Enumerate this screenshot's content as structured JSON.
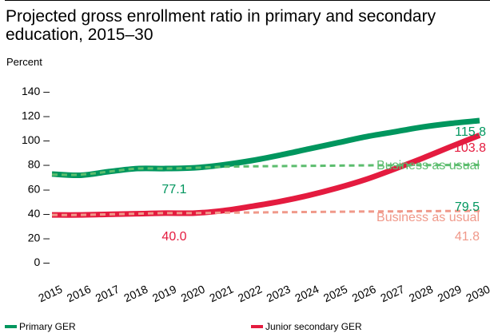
{
  "chart_data": {
    "type": "line",
    "title": "Projected gross enrollment ratio in primary and secondary education, 2015–30",
    "ylabel": "Percent",
    "xlabel": "",
    "x": [
      "2015",
      "2016",
      "2017",
      "2018",
      "2019",
      "2020",
      "2021",
      "2022",
      "2023",
      "2024",
      "2025",
      "2026",
      "2027",
      "2028",
      "2029",
      "2030"
    ],
    "yticks": [
      "0 –",
      "20 –",
      "40 –",
      "60 –",
      "80 –",
      "100 –",
      "120 –",
      "140 –"
    ],
    "ytick_values": [
      0,
      20,
      40,
      60,
      80,
      100,
      120,
      140
    ],
    "ylim": [
      0,
      140
    ],
    "grid": false,
    "series": [
      {
        "name": "Primary GER",
        "color": "#00965e",
        "values": [
          72,
          71,
          74,
          76.5,
          76.5,
          77.1,
          79.5,
          83,
          87.5,
          92.5,
          97.5,
          102.5,
          106.5,
          110.5,
          113.5,
          115.8
        ]
      },
      {
        "name": "Business as usual",
        "color": "#5cbd6e",
        "dashed": true,
        "values": [
          71.5,
          71.5,
          74,
          76.5,
          76.5,
          77.1,
          78,
          78.3,
          78.5,
          78.7,
          78.9,
          79.1,
          79.2,
          79.3,
          79.4,
          79.5
        ]
      },
      {
        "name": "Junior secondary GER",
        "color": "#e41b3f",
        "values": [
          38.5,
          38.5,
          39,
          39.5,
          40,
          40.0,
          42,
          45.5,
          49.5,
          54.5,
          60.5,
          67.5,
          76,
          85,
          94.5,
          103.8
        ]
      },
      {
        "name": "Business as usual",
        "color": "#f0998a",
        "dashed": true,
        "values": [
          38.5,
          38.5,
          39,
          39.5,
          40,
          40.0,
          40.3,
          40.5,
          40.7,
          40.9,
          41.1,
          41.3,
          41.4,
          41.6,
          41.7,
          41.8
        ]
      }
    ],
    "data_labels": [
      {
        "text": "115.8",
        "color": "#00965e"
      },
      {
        "text": "103.8",
        "color": "#e41b3f"
      },
      {
        "text": "Business as usual",
        "color": "#5cbd6e"
      },
      {
        "text": "79.5",
        "color": "#00965e"
      },
      {
        "text": "77.1",
        "color": "#00965e"
      },
      {
        "text": "Business as usual",
        "color": "#f0998a"
      },
      {
        "text": "41.8",
        "color": "#f0998a"
      },
      {
        "text": "40.0",
        "color": "#e41b3f"
      }
    ],
    "legend": {
      "position": "bottom",
      "items": [
        {
          "label": "Primary GER",
          "color": "#00965e"
        },
        {
          "label": "Junior secondary GER",
          "color": "#e41b3f"
        }
      ]
    }
  }
}
